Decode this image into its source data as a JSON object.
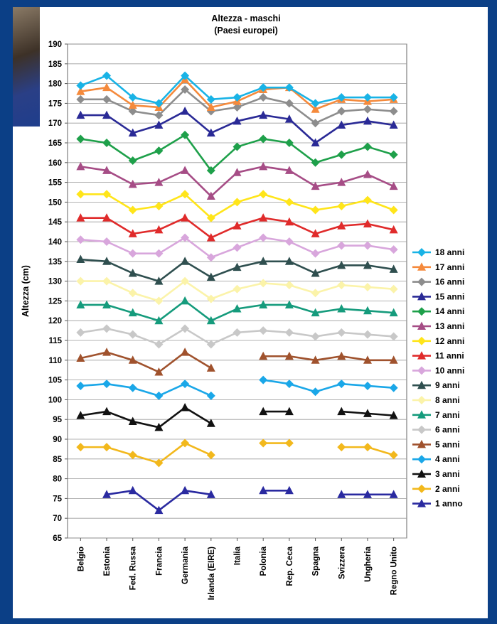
{
  "chart_data": {
    "type": "line",
    "title": "Altezza - maschi",
    "subtitle": "(Paesi europei)",
    "ylabel": "Altezza (cm)",
    "xlabel": "",
    "ylim": [
      65,
      190
    ],
    "ytick_step": 5,
    "grid": "horizontal",
    "legend_position": "right",
    "categories": [
      "Belgio",
      "Estonia",
      "Fed. Russa",
      "Francia",
      "Germania",
      "Irlanda (EIRE)",
      "Italia",
      "Polonia",
      "Rep. Ceca",
      "Spagna",
      "Svizzera",
      "Ungheria",
      "Regno Unito"
    ],
    "series": [
      {
        "name": "18 anni",
        "color": "#19b3e6",
        "marker": "diamond",
        "values": [
          179.5,
          182,
          176.5,
          175,
          182,
          176,
          176.5,
          179,
          179,
          175,
          176.5,
          176.5,
          176.5
        ]
      },
      {
        "name": "17 anni",
        "color": "#f58a3c",
        "marker": "triangle",
        "values": [
          178,
          179,
          174.5,
          174,
          181,
          174,
          175.5,
          178.5,
          179,
          173.5,
          176,
          175.5,
          176
        ]
      },
      {
        "name": "16 anni",
        "color": "#8d8d8d",
        "marker": "diamond",
        "values": [
          176,
          176,
          173,
          172,
          178.5,
          173,
          174,
          176.5,
          175,
          170,
          173,
          173.5,
          173
        ]
      },
      {
        "name": "15 anni",
        "color": "#2a2a96",
        "marker": "triangle",
        "values": [
          172,
          172,
          167.5,
          169.5,
          173,
          167.5,
          170.5,
          172,
          171,
          165,
          169.5,
          170.5,
          169.5
        ]
      },
      {
        "name": "14 anni",
        "color": "#1ea04a",
        "marker": "diamond",
        "values": [
          166,
          165,
          160.5,
          163,
          167,
          158,
          164,
          166,
          165,
          160,
          162,
          164,
          162
        ]
      },
      {
        "name": "13 anni",
        "color": "#a64d86",
        "marker": "triangle",
        "values": [
          159,
          158,
          154.5,
          155,
          158,
          151.5,
          157.5,
          159,
          158,
          154,
          155,
          157,
          154
        ]
      },
      {
        "name": "12 anni",
        "color": "#ffe51a",
        "marker": "diamond",
        "values": [
          152,
          152,
          148,
          149,
          152,
          146,
          150,
          152,
          150,
          148,
          149,
          150.5,
          148
        ]
      },
      {
        "name": "11 anni",
        "color": "#e02b2b",
        "marker": "triangle",
        "values": [
          146,
          146,
          142,
          143,
          146,
          141,
          144,
          146,
          145,
          142,
          144,
          144.5,
          143
        ]
      },
      {
        "name": "10 anni",
        "color": "#d8a6dc",
        "marker": "diamond",
        "values": [
          140.5,
          140,
          137,
          137,
          141,
          136,
          138.5,
          141,
          140,
          137,
          139,
          139,
          138
        ]
      },
      {
        "name": "9 anni",
        "color": "#2f4f4f",
        "marker": "triangle",
        "values": [
          135.5,
          135,
          132,
          130,
          135,
          131,
          133.5,
          135,
          135,
          132,
          134,
          134,
          133
        ]
      },
      {
        "name": "8 anni",
        "color": "#fbf3a9",
        "marker": "diamond",
        "values": [
          130,
          130,
          127,
          125,
          130,
          125.5,
          128,
          129.5,
          129,
          127,
          129,
          128.5,
          128
        ]
      },
      {
        "name": "7 anni",
        "color": "#159b7c",
        "marker": "triangle",
        "values": [
          124,
          124,
          122,
          120,
          125,
          120,
          123,
          124,
          124,
          122,
          123,
          122.5,
          122
        ]
      },
      {
        "name": "6 anni",
        "color": "#c8c8c8",
        "marker": "diamond",
        "values": [
          117,
          118,
          116.5,
          114,
          118,
          114,
          117,
          117.5,
          117,
          116,
          117,
          116.5,
          116
        ]
      },
      {
        "name": "5 anni",
        "color": "#a0522d",
        "marker": "triangle",
        "values": [
          110.5,
          112,
          110,
          107,
          112,
          108,
          null,
          111,
          111,
          110,
          111,
          110,
          110
        ]
      },
      {
        "name": "4 anni",
        "color": "#1aa7e8",
        "marker": "diamond",
        "values": [
          103.5,
          104,
          103,
          101,
          104,
          101,
          null,
          105,
          104,
          102,
          104,
          103.5,
          103
        ]
      },
      {
        "name": "3 anni",
        "color": "#111111",
        "marker": "triangle",
        "values": [
          96,
          97,
          94.5,
          93,
          98,
          94,
          null,
          97,
          97,
          null,
          97,
          96.5,
          96
        ]
      },
      {
        "name": "2 anni",
        "color": "#f2b81c",
        "marker": "diamond",
        "values": [
          88,
          88,
          86,
          84,
          89,
          86,
          null,
          89,
          89,
          null,
          88,
          88,
          86
        ]
      },
      {
        "name": "1 anno",
        "color": "#2a2aa0",
        "marker": "triangle",
        "values": [
          null,
          76,
          77,
          72,
          77,
          76,
          null,
          77,
          77,
          null,
          76,
          76,
          76
        ]
      }
    ]
  }
}
